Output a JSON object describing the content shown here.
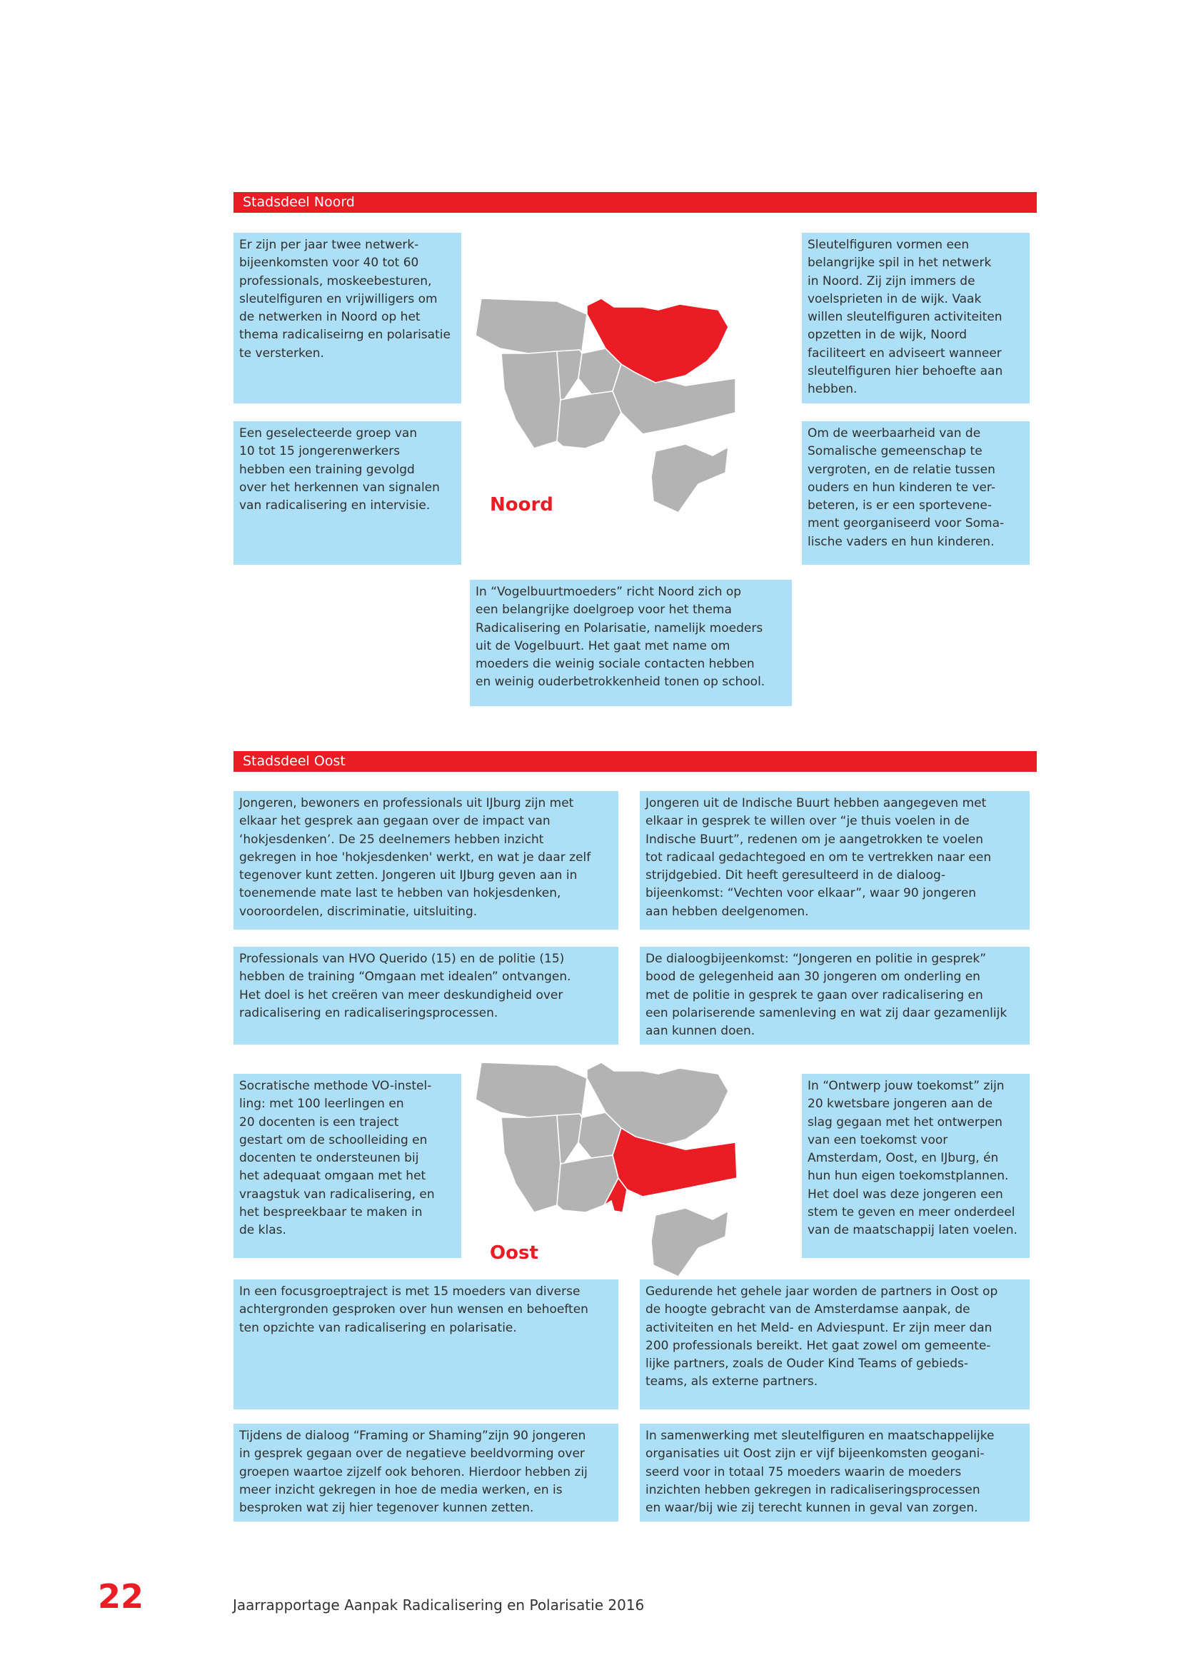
{
  "colors": {
    "accent": "#ec1c24",
    "box": "#ade0f6",
    "map_gray": "#b3b3b3"
  },
  "noord": {
    "header": "Stadsdeel Noord",
    "map_label": "Noord",
    "highlighted_district": "Noord",
    "box1": "Er zijn per jaar twee netwerk-\nbijeenkomsten voor 40 tot 60\nprofessionals, moskeebesturen,\nsleutelfiguren en vrijwilligers om\nde netwerken in Noord op het\nthema radicaliseirng en polarisatie\nte versterken.",
    "box2": "Een geselecteerde groep van\n10 tot 15  jongerenwerkers\nhebben een training gevolgd\nover het herkennen van signalen\nvan radicalisering en intervisie.",
    "box3": "Sleutelfiguren vormen een\nbelangrijke spil in het netwerk\nin Noord. Zij zijn immers de\nvoelsprieten in de wijk. Vaak\nwillen sleutelfiguren activiteiten\nopzetten in de wijk, Noord\nfaciliteert en adviseert wanneer\nsleutelfiguren hier behoefte aan\nhebben.",
    "box4": "Om de weerbaarheid van de\nSomalische gemeenschap te\nvergroten, en de relatie tussen\nouders en hun kinderen te ver-\nbeteren, is er een sportevene-\nment georganiseerd voor Soma-\nlische vaders en hun kinderen.",
    "box5": "In “Vogelbuurtmoeders” richt Noord zich op\neen belangrijke doelgroep voor het thema\nRadicalisering en Polarisatie, namelijk moeders\nuit de Vogelbuurt. Het gaat met name om\nmoeders die weinig sociale contacten hebben\nen weinig ouderbetrokkenheid tonen op school."
  },
  "oost": {
    "header": "Stadsdeel Oost",
    "map_label": "Oost",
    "highlighted_district": "Oost",
    "box1": "Jongeren, bewoners en professionals uit IJburg zijn met\nelkaar het gesprek aan  gegaan over de impact van\n‘hokjesdenken’. De 25 deelnemers hebben inzicht\ngekregen in hoe 'hokjesdenken' werkt, en wat je daar zelf\ntegenover kunt zetten. Jongeren uit IJburg geven aan in\ntoenemende mate last te hebben van hokjesdenken,\nvooroordelen, discriminatie, uitsluiting.",
    "box2": "Jongeren uit de Indische Buurt hebben aangegeven met\nelkaar in gesprek te willen over “je thuis voelen in de\nIndische Buurt”, redenen om je aangetrokken te voelen\ntot radicaal gedachtegoed en om te vertrekken naar een\nstrijdgebied. Dit heeft geresulteerd in de dialoog-\nbijeenkomst: “Vechten voor elkaar”, waar 90 jongeren\naan hebben deelgenomen.",
    "box3": "Professionals van HVO Querido (15) en de politie (15)\nhebben de training “Omgaan met idealen” ontvangen.\nHet doel is het creëren van meer deskundigheid over\nradicalisering en radicaliseringsprocessen.",
    "box4": "De dialoogbijeenkomst: “Jongeren en politie in gesprek”\nbood de gelegenheid aan 30 jongeren om onderling en\nmet de politie in gesprek te gaan over radicalisering en\neen polariserende samenleving en wat zij daar gezamenlijk\naan kunnen doen.",
    "box5": "Socratische methode VO-instel-\nling: met 100 leerlingen en\n20 docenten is een traject\ngestart om de schoolleiding en\ndocenten te ondersteunen bij\nhet adequaat omgaan met het\nvraagstuk van radicalisering, en\nhet bespreekbaar te maken in\nde klas.",
    "box6": "In “Ontwerp jouw toekomst” zijn\n20 kwetsbare jongeren aan de\nslag gegaan met het ontwerpen\nvan een toekomst voor\nAmsterdam, Oost, en IJburg, én\nhun hun eigen toekomstplannen.\nHet doel was deze jongeren een\nstem te geven en meer onderdeel\nvan de maatschappij laten voelen.",
    "box7": "In een focusgroeptraject is met 15 moeders van diverse\nachtergronden gesproken over hun wensen en behoeften\nten opzichte van radicalisering en polarisatie.",
    "box8": "Gedurende het gehele jaar worden de partners in Oost op\nde hoogte gebracht van de Amsterdamse aanpak, de\nactiviteiten en het Meld- en Adviespunt. Er zijn meer dan\n200 professionals bereikt. Het gaat zowel om gemeente-\nlijke partners, zoals de Ouder Kind Teams of gebieds-\nteams, als externe partners.",
    "box9": "Tijdens de dialoog “Framing or Shaming”zijn 90 jongeren\nin gesprek gegaan over de negatieve beeldvorming over\ngroepen waartoe zijzelf ook behoren. Hierdoor hebben zij\nmeer inzicht gekregen in hoe de media werken, en is\nbesproken wat zij hier tegenover kunnen zetten.",
    "box10": "In samenwerking met sleutelfiguren en maatschappelijke\norganisaties uit Oost zijn er vijf bijeenkomsten geogani-\nseerd voor in totaal 75 moeders waarin de moeders\ninzichten hebben gekregen in radicaliseringsprocessen\nen waar/bij wie zij terecht kunnen in geval van zorgen."
  },
  "footer": {
    "page_number": "22",
    "title": "Jaarrapportage Aanpak Radicalisering en Polarisatie 2016"
  }
}
